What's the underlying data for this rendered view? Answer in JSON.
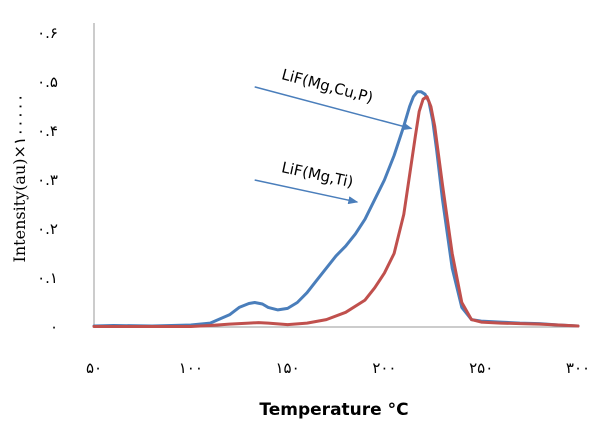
{
  "chart_data": {
    "type": "line",
    "xlabel": "Temperature °C",
    "ylabel": "Intensity(au)×۱۰۰۰۰۰",
    "xlim": [
      50,
      300
    ],
    "ylim": [
      0,
      0.6
    ],
    "x_tick_values": [
      50,
      100,
      150,
      200,
      250,
      300
    ],
    "x_tick_labels": [
      "۵۰",
      "۱۰۰",
      "۱۵۰",
      "۲۰۰",
      "۲۵۰",
      "۳۰۰"
    ],
    "y_tick_values": [
      0,
      0.1,
      0.2,
      0.3,
      0.4,
      0.5,
      0.6
    ],
    "y_tick_labels": [
      "۰",
      "۰.۱",
      "۰.۲",
      "۰.۳",
      "۰.۴",
      "۰.۵",
      "۰.۶"
    ],
    "grid": false,
    "legend": "none",
    "series": [
      {
        "color": "#4a7ebb",
        "x": [
          50,
          60,
          80,
          100,
          110,
          120,
          125,
          130,
          133,
          137,
          140,
          145,
          150,
          155,
          160,
          165,
          170,
          175,
          180,
          185,
          190,
          195,
          200,
          205,
          210,
          213,
          215,
          217,
          219,
          221,
          223,
          225,
          227,
          230,
          235,
          240,
          245,
          250,
          260,
          270,
          280,
          290,
          300
        ],
        "y": [
          0.002,
          0.003,
          0.002,
          0.004,
          0.008,
          0.025,
          0.04,
          0.048,
          0.05,
          0.047,
          0.04,
          0.035,
          0.038,
          0.05,
          0.07,
          0.095,
          0.12,
          0.145,
          0.165,
          0.19,
          0.22,
          0.26,
          0.3,
          0.35,
          0.41,
          0.45,
          0.47,
          0.48,
          0.48,
          0.475,
          0.46,
          0.42,
          0.36,
          0.26,
          0.12,
          0.04,
          0.015,
          0.012,
          0.01,
          0.008,
          0.007,
          0.004,
          0.002
        ]
      },
      {
        "color": "#c0504d",
        "x": [
          50,
          80,
          100,
          110,
          120,
          130,
          135,
          140,
          150,
          160,
          170,
          180,
          190,
          195,
          200,
          205,
          210,
          213,
          216,
          218,
          220,
          222,
          224,
          226,
          228,
          230,
          235,
          240,
          245,
          250,
          260,
          270,
          280,
          290,
          300
        ],
        "y": [
          0.001,
          0.001,
          0.001,
          0.003,
          0.006,
          0.008,
          0.009,
          0.008,
          0.005,
          0.008,
          0.015,
          0.03,
          0.055,
          0.08,
          0.11,
          0.15,
          0.23,
          0.31,
          0.39,
          0.44,
          0.465,
          0.47,
          0.45,
          0.41,
          0.35,
          0.29,
          0.15,
          0.05,
          0.015,
          0.01,
          0.008,
          0.007,
          0.006,
          0.004,
          0.002
        ]
      }
    ],
    "annotations": [
      {
        "text": "LiF(Mg,Cu,P)",
        "arrow_from": [
          133,
          0.49
        ],
        "arrow_to": [
          214,
          0.405
        ]
      },
      {
        "text": "LiF(Mg,Ti)",
        "arrow_from": [
          133,
          0.3
        ],
        "arrow_to": [
          186,
          0.255
        ]
      }
    ]
  }
}
